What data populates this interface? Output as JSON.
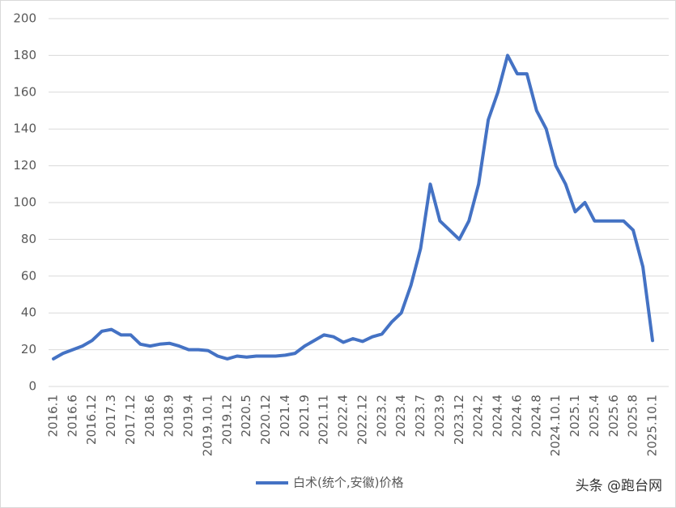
{
  "chart_data": {
    "type": "line",
    "categories": [
      "2016.1",
      null,
      "2016.6",
      null,
      "2016.12",
      null,
      "2017.3",
      null,
      "2017.12",
      null,
      "2018.6",
      null,
      "2018.9",
      null,
      "2019.4",
      null,
      "2019.10.1",
      null,
      "2019.12",
      null,
      "2020.5",
      null,
      "2020.12",
      null,
      "2021.4",
      null,
      "2021.9",
      null,
      "2021.11",
      null,
      "2022.4",
      null,
      "2022.12",
      null,
      "2023.2",
      null,
      "2023.4",
      null,
      "2023.7",
      null,
      "2023.9",
      null,
      "2023.12",
      null,
      "2024.2",
      null,
      "2024.4",
      null,
      "2024.6",
      null,
      "2024.8",
      null,
      "2024.10.1",
      null,
      "2025.1",
      null,
      "2025.4",
      null,
      "2025.6",
      null,
      "2025.8",
      null,
      "2025.10.1"
    ],
    "series": [
      {
        "name": "白术(统个,安徽)价格",
        "color": "#4472c4",
        "values": [
          15,
          18,
          20,
          22,
          25,
          30,
          31,
          28,
          28,
          23,
          22,
          23,
          23.5,
          22,
          20,
          20,
          19.5,
          16.5,
          15,
          16.5,
          16,
          16.5,
          16.5,
          16.5,
          17,
          18,
          22,
          25,
          28,
          27,
          24,
          26,
          24.5,
          27,
          28.5,
          35,
          40,
          55,
          75,
          110,
          90,
          85,
          80,
          90,
          110,
          145,
          160,
          180,
          170,
          170,
          150,
          140,
          120,
          110,
          95,
          100,
          90,
          90,
          90,
          90,
          85,
          65,
          25
        ]
      }
    ],
    "ylim": [
      0,
      200
    ],
    "yticks": [
      0,
      20,
      40,
      60,
      80,
      100,
      120,
      140,
      160,
      180,
      200
    ],
    "grid": true,
    "legend": "bottom",
    "watermark": "头条 @跑台网"
  }
}
